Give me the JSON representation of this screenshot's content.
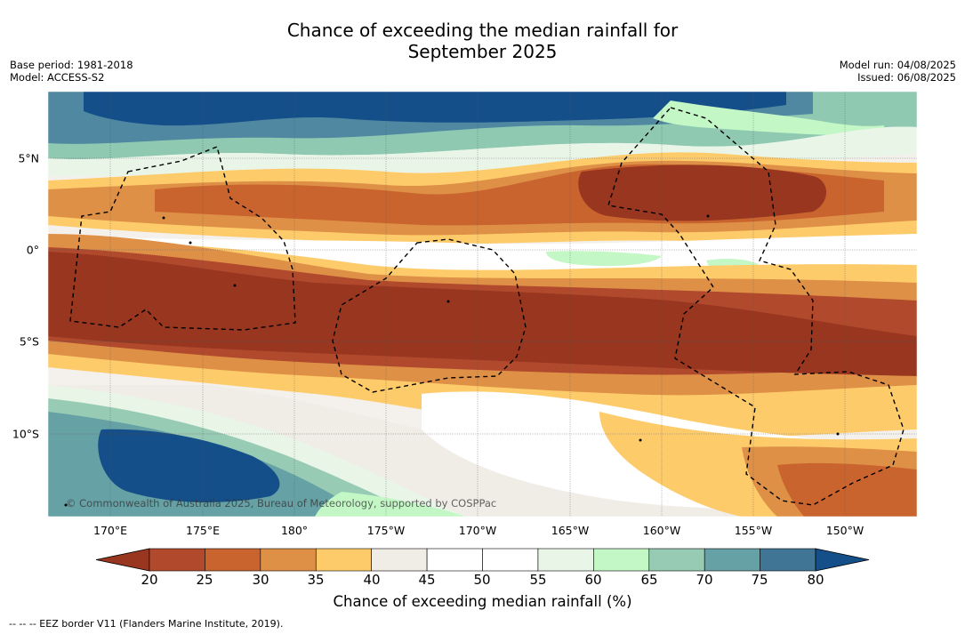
{
  "title": {
    "line1": "Chance of exceeding the median rainfall for",
    "line2": "September 2025"
  },
  "meta": {
    "base_period": "Base period: 1981-2018",
    "model": "Model: ACCESS-S2",
    "model_run": "Model run: 04/08/2025",
    "issued": "Issued: 06/08/2025"
  },
  "map": {
    "lat_labels": [
      "5°N",
      "0°",
      "5°S",
      "10°S"
    ],
    "lon_labels": [
      "170°E",
      "175°E",
      "180°",
      "175°W",
      "170°W",
      "165°W",
      "160°W",
      "155°W",
      "150°W"
    ],
    "copyright": "© Commonwealth of Australia 2025, Bureau of Meteorology, supported by COSPPac"
  },
  "colorbar": {
    "ticks": [
      "20",
      "25",
      "30",
      "35",
      "40",
      "45",
      "50",
      "55",
      "60",
      "65",
      "70",
      "75",
      "80"
    ],
    "label": "Chance of exceeding median rainfall (%)",
    "colors": [
      "#983620",
      "#b1492d",
      "#c9642f",
      "#de9047",
      "#fecb6a",
      "#f0ece6",
      "#ffffff",
      "#ffffff",
      "#e9f5e7",
      "#c4f7c6",
      "#97cbb4",
      "#66a1a5",
      "#417596",
      "#154f89"
    ]
  },
  "legend_note": "--  --  -- EEZ border V11 (Flanders Marine Institute, 2019)."
}
